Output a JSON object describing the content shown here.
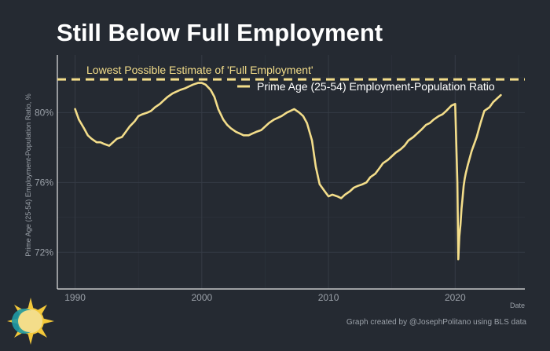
{
  "title": "Still Below Full Employment",
  "credit": "Graph created by @JosephPolitano using BLS data",
  "chart_data": {
    "type": "line",
    "xlabel": "Date",
    "ylabel": "Prime Age (25-54) Employment-Population Ratio, %",
    "xlim": [
      1988.6,
      2025.5
    ],
    "ylim": [
      69.9,
      83.3
    ],
    "x_ticks": [
      1990,
      2000,
      2010,
      2020
    ],
    "x_tick_labels": [
      "1990",
      "2000",
      "2010",
      "2020"
    ],
    "y_ticks": [
      72,
      76,
      80
    ],
    "y_tick_labels": [
      "72%",
      "76%",
      "80%"
    ],
    "grid": true,
    "legend_position": "top-right",
    "reference_line": {
      "value": 81.9,
      "label": "Lowest Possible Estimate of 'Full Employment'",
      "color": "#f3dd8a"
    },
    "series": [
      {
        "name": "Prime Age (25-54) Employment-Population Ratio",
        "color": "#f3dd8a",
        "x": [
          1990.0,
          1990.3,
          1990.7,
          1991.0,
          1991.3,
          1991.7,
          1992.0,
          1992.3,
          1992.7,
          1993.0,
          1993.3,
          1993.7,
          1994.0,
          1994.3,
          1994.7,
          1995.0,
          1995.3,
          1995.7,
          1996.0,
          1996.3,
          1996.7,
          1997.0,
          1997.3,
          1997.7,
          1998.0,
          1998.3,
          1998.7,
          1999.0,
          1999.3,
          1999.7,
          2000.0,
          2000.3,
          2000.7,
          2001.0,
          2001.3,
          2001.7,
          2002.0,
          2002.3,
          2002.7,
          2003.0,
          2003.3,
          2003.7,
          2004.0,
          2004.3,
          2004.7,
          2005.0,
          2005.3,
          2005.7,
          2006.0,
          2006.3,
          2006.7,
          2007.0,
          2007.3,
          2007.7,
          2008.0,
          2008.3,
          2008.7,
          2009.0,
          2009.3,
          2009.7,
          2010.0,
          2010.3,
          2010.7,
          2011.0,
          2011.3,
          2011.7,
          2012.0,
          2012.3,
          2012.7,
          2013.0,
          2013.3,
          2013.7,
          2014.0,
          2014.3,
          2014.7,
          2015.0,
          2015.3,
          2015.7,
          2016.0,
          2016.3,
          2016.7,
          2017.0,
          2017.3,
          2017.7,
          2018.0,
          2018.3,
          2018.7,
          2019.0,
          2019.3,
          2019.7,
          2020.0,
          2020.17,
          2020.25,
          2020.33,
          2020.42,
          2020.5,
          2020.58,
          2020.67,
          2020.75,
          2020.83,
          2021.0,
          2021.3,
          2021.7,
          2022.0,
          2022.3,
          2022.7,
          2023.0,
          2023.3,
          2023.6
        ],
        "values": [
          80.2,
          79.6,
          79.1,
          78.7,
          78.5,
          78.3,
          78.3,
          78.2,
          78.1,
          78.3,
          78.5,
          78.6,
          78.9,
          79.2,
          79.5,
          79.8,
          79.9,
          80.0,
          80.1,
          80.3,
          80.5,
          80.7,
          80.9,
          81.1,
          81.2,
          81.3,
          81.4,
          81.5,
          81.6,
          81.7,
          81.7,
          81.6,
          81.3,
          80.9,
          80.2,
          79.6,
          79.3,
          79.1,
          78.9,
          78.8,
          78.7,
          78.7,
          78.8,
          78.9,
          79.0,
          79.2,
          79.4,
          79.6,
          79.7,
          79.8,
          80.0,
          80.1,
          80.2,
          80.0,
          79.8,
          79.4,
          78.4,
          76.9,
          75.9,
          75.5,
          75.2,
          75.3,
          75.2,
          75.1,
          75.3,
          75.5,
          75.7,
          75.8,
          75.9,
          76.0,
          76.3,
          76.5,
          76.8,
          77.1,
          77.3,
          77.5,
          77.7,
          77.9,
          78.1,
          78.4,
          78.6,
          78.8,
          79.0,
          79.3,
          79.4,
          79.6,
          79.8,
          79.9,
          80.1,
          80.4,
          80.5,
          76.0,
          71.6,
          72.9,
          73.6,
          74.5,
          75.1,
          75.8,
          76.2,
          76.5,
          77.0,
          77.8,
          78.6,
          79.4,
          80.1,
          80.3,
          80.6,
          80.8,
          81.0
        ]
      }
    ]
  }
}
